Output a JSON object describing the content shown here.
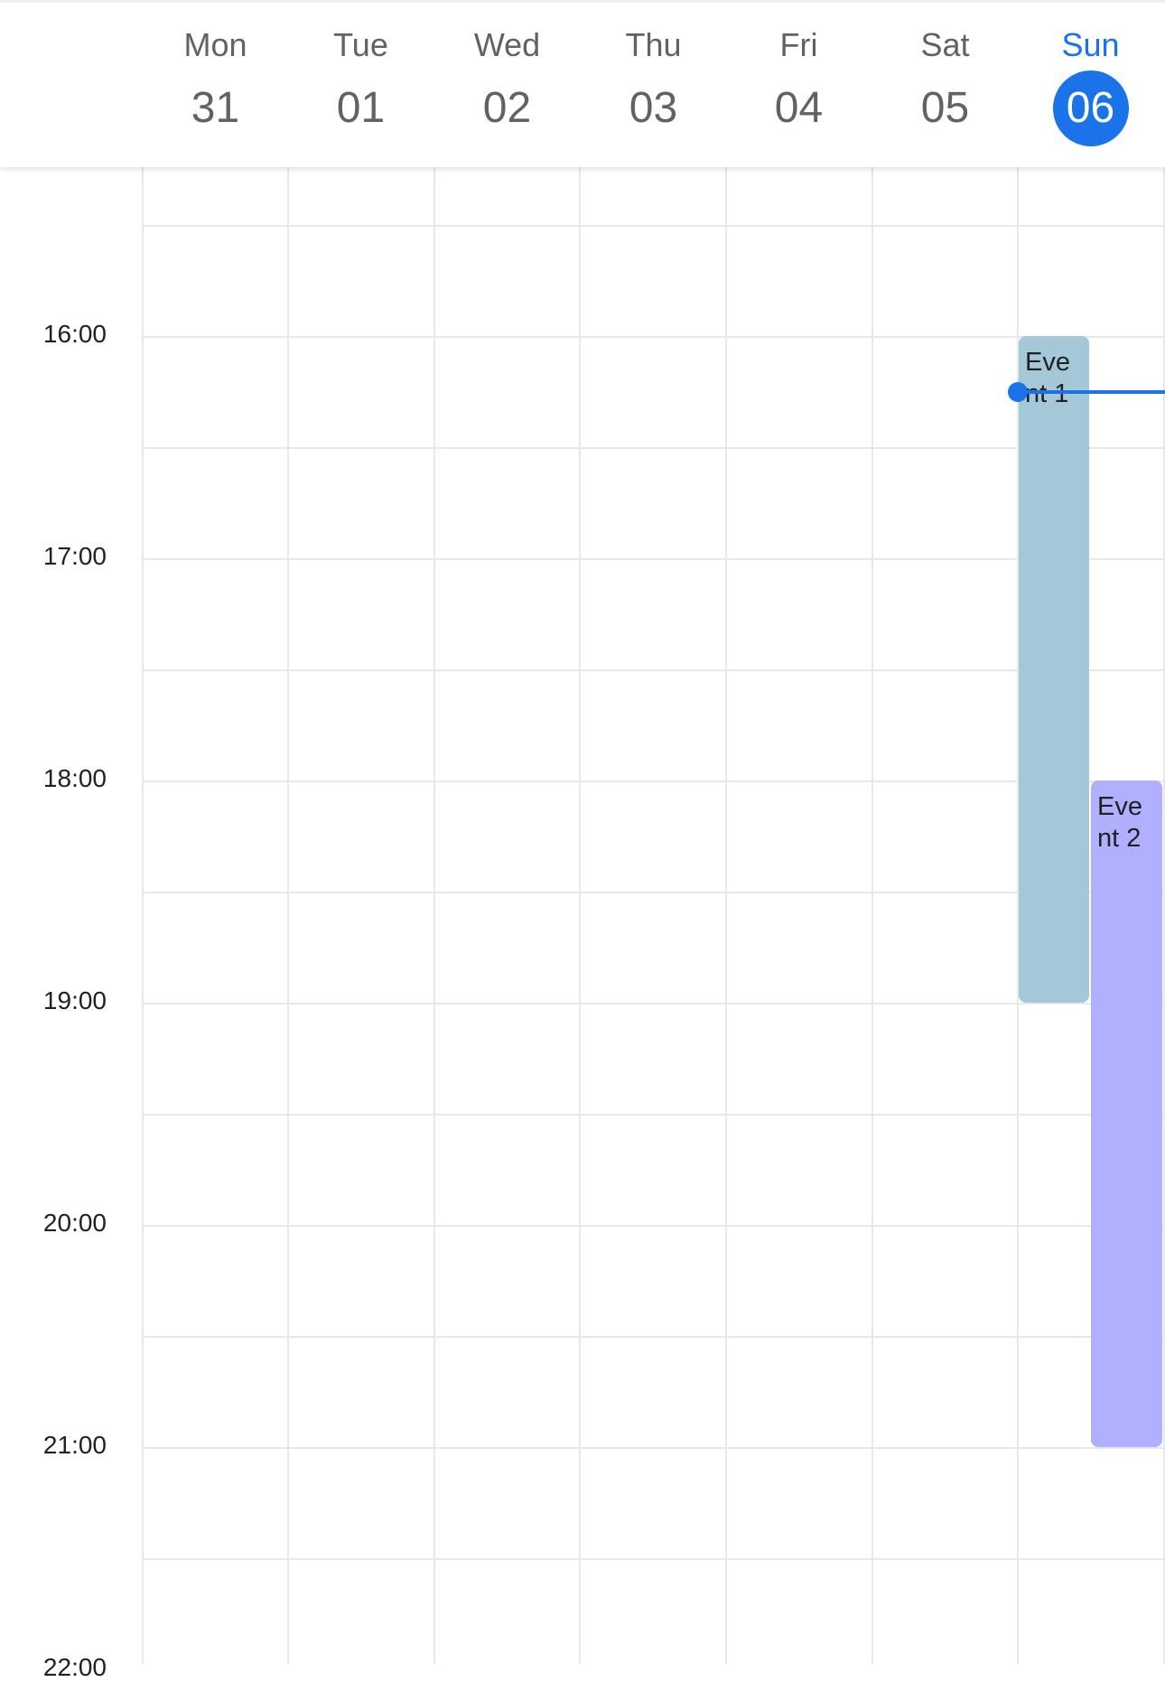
{
  "week": {
    "days": [
      {
        "name": "Mon",
        "date": "31"
      },
      {
        "name": "Tue",
        "date": "01"
      },
      {
        "name": "Wed",
        "date": "02"
      },
      {
        "name": "Thu",
        "date": "03"
      },
      {
        "name": "Fri",
        "date": "04"
      },
      {
        "name": "Sat",
        "date": "05"
      },
      {
        "name": "Sun",
        "date": "06"
      }
    ],
    "today_index": 6
  },
  "times": [
    "16:00",
    "17:00",
    "18:00",
    "19:00",
    "20:00",
    "21:00",
    "22:00"
  ],
  "events": [
    {
      "title": "Event 1",
      "day": "Sun",
      "start": "16:00",
      "end": "19:00",
      "color": "#a5c8d8"
    },
    {
      "title": "Event 2",
      "day": "Sun",
      "start": "18:00",
      "end": "21:00",
      "color": "#b0b0ff"
    }
  ],
  "now_indicator": {
    "time": "16:15",
    "color": "#1a73e8"
  },
  "colors": {
    "accent": "#1a73e8",
    "grid": "#e8e8e8",
    "text_muted": "#5f6368"
  }
}
